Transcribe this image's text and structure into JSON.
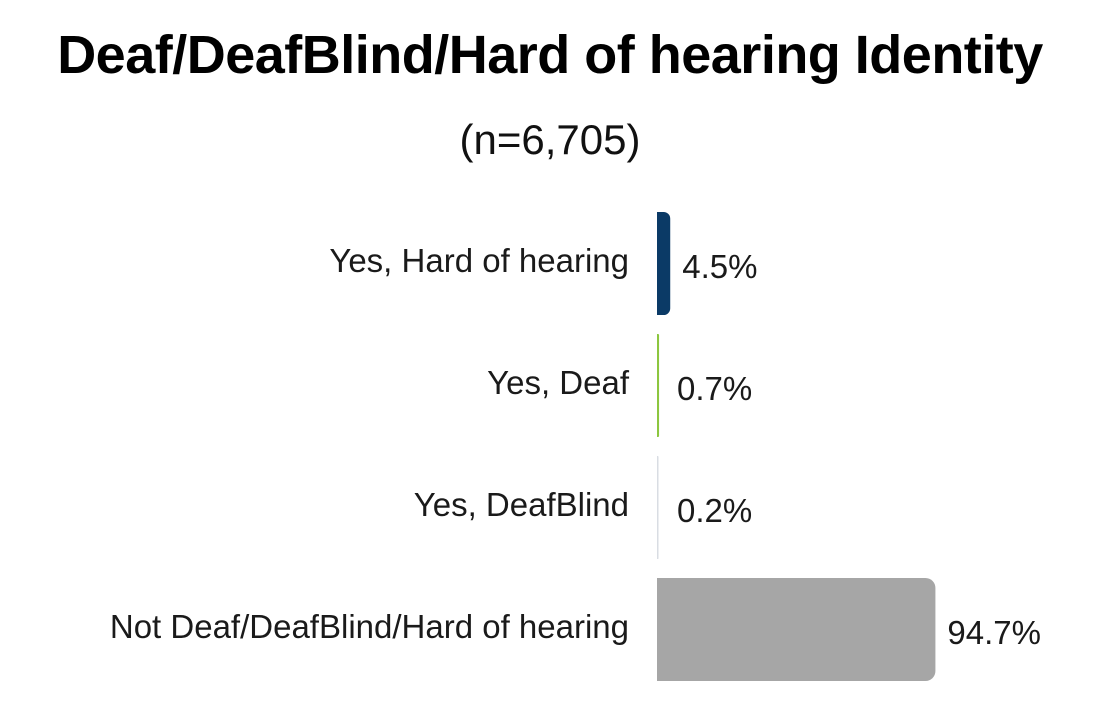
{
  "chart_data": {
    "type": "bar",
    "orientation": "horizontal",
    "title": "Deaf/DeafBlind/Hard of hearing Identity",
    "subtitle": "(n=6,705)",
    "categories": [
      "Yes, Hard of hearing",
      "Yes, Deaf",
      "Yes, DeafBlind",
      "Not Deaf/DeafBlind/Hard of hearing"
    ],
    "values": [
      4.5,
      0.7,
      0.2,
      94.7
    ],
    "value_labels": [
      "4.5%",
      "0.7%",
      "0.2%",
      "94.7%"
    ],
    "colors": [
      "#0b3a66",
      "#8cc63f",
      "#d9dde3",
      "#a6a6a6"
    ],
    "xlim": [
      0,
      100
    ],
    "grid": false,
    "legend": "none"
  }
}
